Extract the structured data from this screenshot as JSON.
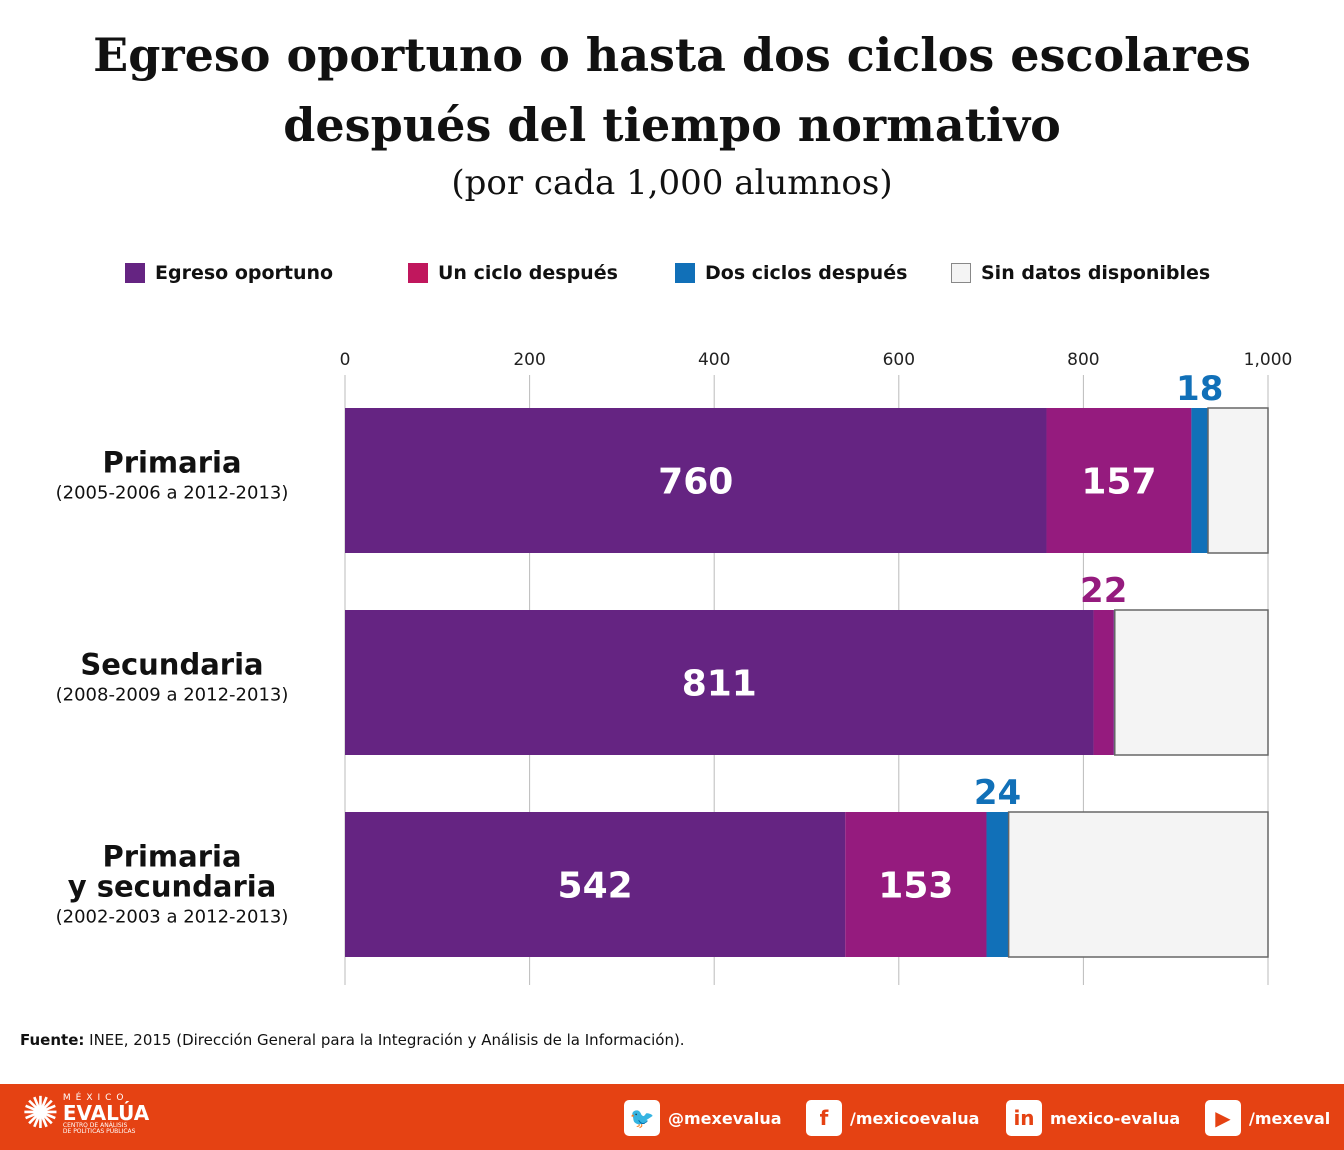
{
  "title_line1": "Egreso oportuno o hasta dos ciclos escolares",
  "title_line2": "después del tiempo normativo",
  "subtitle": "(por cada 1,000 alumnos)",
  "colors": {
    "egreso": "#652482",
    "un_ciclo": "#951b7e",
    "un_ciclo_legend": "#c0175d",
    "dos_ciclos": "#1170b8",
    "sin_datos": "#f4f4f4",
    "footer": "#e54213"
  },
  "chart_data": {
    "type": "bar",
    "orientation": "horizontal",
    "stacked": true,
    "xlim": [
      0,
      1000
    ],
    "xticks": [
      "0",
      "200",
      "400",
      "600",
      "800",
      "1,000"
    ],
    "grid": true,
    "legend_position": "top",
    "categories": [
      {
        "name": "Primaria",
        "period": "(2005-2006 a 2012-2013)"
      },
      {
        "name": "Secundaria",
        "period": "(2008-2009 a 2012-2013)"
      },
      {
        "name": "Primaria y secundaria",
        "name_lines": [
          "Primaria",
          "y secundaria"
        ],
        "period": "(2002-2003 a 2012-2013)"
      }
    ],
    "series": [
      {
        "name": "Egreso oportuno",
        "values": [
          760,
          811,
          542
        ],
        "labels": [
          "760",
          "811",
          "542"
        ]
      },
      {
        "name": "Un ciclo después",
        "values": [
          157,
          22,
          153
        ],
        "labels": [
          "157",
          "22",
          "153"
        ]
      },
      {
        "name": "Dos ciclos después",
        "values": [
          18,
          1,
          24
        ],
        "labels": [
          "18",
          "",
          "24"
        ]
      },
      {
        "name": "Sin datos disponibles",
        "values": [
          65,
          166,
          281
        ],
        "labels": [
          "",
          "",
          ""
        ]
      }
    ]
  },
  "source": {
    "label": "Fuente:",
    "text": " INEE, 2015 (Dirección General para la Integración y Análisis de la Información)."
  },
  "footer": {
    "logo_top": "MÉXICO",
    "logo_main": "EVALÚA",
    "logo_sub1": "CENTRO DE ANÁLISIS",
    "logo_sub2": "DE POLÍTICAS PÚBLICAS",
    "social": [
      {
        "icon": "twitter-icon",
        "glyph": "🐦",
        "text": "@mexevalua"
      },
      {
        "icon": "facebook-icon",
        "glyph": "f",
        "text": "/mexicoevalua"
      },
      {
        "icon": "linkedin-icon",
        "glyph": "in",
        "text": "mexico-evalua"
      },
      {
        "icon": "youtube-icon",
        "glyph": "▶",
        "text": "/mexeval"
      }
    ]
  }
}
